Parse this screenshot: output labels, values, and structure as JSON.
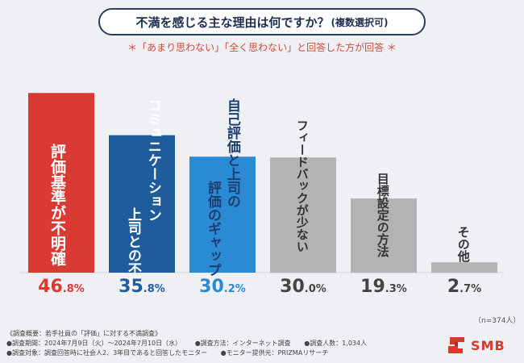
{
  "header": {
    "title": "不満を感じる主な理由は何ですか？",
    "title_note": "(複数選択可)",
    "subtitle": "＊「あまり思わない」「全く思わない」と回答した方が回答 ＊"
  },
  "chart_data": {
    "type": "bar",
    "title": "不満を感じる主な理由は何ですか？(複数選択可)",
    "categories": [
      "評価基準が不明確",
      "上司とのコミュニケーション不足",
      "自己評価と上司の評価のギャップ",
      "フィードバックが少ない",
      "目標設定の方法",
      "その他"
    ],
    "category_lines": [
      [
        "評価基準が不明確"
      ],
      [
        "コミュニケーション",
        "上司との不足"
      ],
      [
        "自己評価と上司の",
        "評価のギャップ"
      ],
      [
        "フィードバックが少ない"
      ],
      [
        "目標設定の方法"
      ],
      [
        "その他"
      ]
    ],
    "values": [
      46.8,
      35.8,
      30.2,
      30.0,
      19.3,
      2.7
    ],
    "value_labels": [
      {
        "int": "46",
        "dec": ".8%"
      },
      {
        "int": "35",
        "dec": ".8%"
      },
      {
        "int": "30",
        "dec": ".2%"
      },
      {
        "int": "30",
        "dec": ".0%"
      },
      {
        "int": "19",
        "dec": ".3%"
      },
      {
        "int": "2",
        "dec": ".7%"
      }
    ],
    "ylim": [
      0,
      50
    ],
    "xlabel": "",
    "ylabel": "",
    "colors": {
      "bars": [
        "#d93a34",
        "#1e5c9c",
        "#2b8ad4",
        "#b3b3b3",
        "#b3b3b3",
        "#b3b3b3"
      ],
      "values": [
        "#d93a34",
        "#1e5c9c",
        "#2b8ad4",
        "#444444",
        "#444444",
        "#444444"
      ],
      "label_text": [
        "#ffffff",
        "#ffffff",
        "#1e3f6e",
        "#333333",
        "#333333",
        "#333333"
      ]
    }
  },
  "sample_size": "（n=374人）",
  "footer": {
    "overview": "《調査概要：若手社員の「評価」に対する不満調査》",
    "period": "●調査期間：2024年7月9日（火）～2024年7月10日（水）",
    "method": "●調査方法：インターネット調査",
    "count": "●調査人数：1,034人",
    "target": "●調査対象：調査回答時に社会人2、3年目であると回答したモニター",
    "provider": "●モニター提供元：PRIZMAリサーチ"
  },
  "logo": {
    "text": "SMB",
    "icon": "smb-logo-icon",
    "color": "#d63a2a"
  }
}
